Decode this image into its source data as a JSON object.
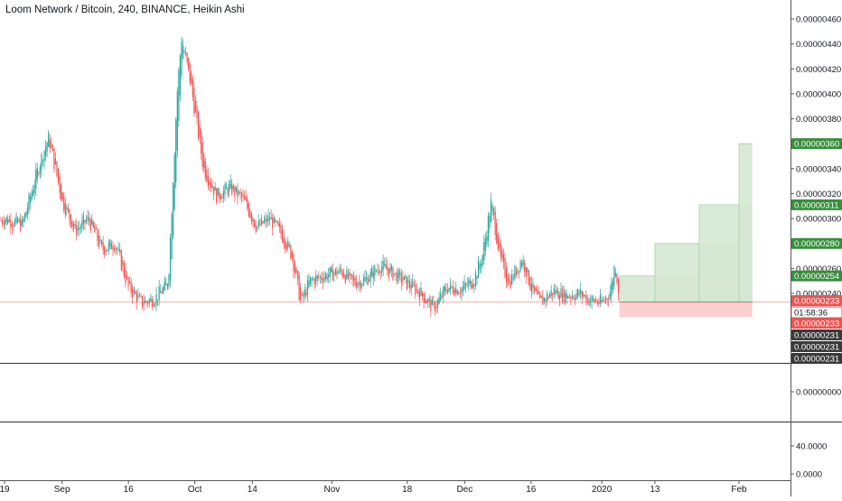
{
  "header": {
    "title": "Loom Network / Bitcoin, 240, BINANCE, Heikin Ashi"
  },
  "colors": {
    "up": "#26a69a",
    "down": "#ef5350",
    "target_zone": "#d5e8d4",
    "stop_zone": "#f8c8c8",
    "price_line": "#ef5350",
    "green_tag": "#388e3c",
    "red_tag": "#ef5350",
    "dark_tag": "#3a3a3a",
    "separator": "#333333"
  },
  "chart_data": {
    "type": "candlestick",
    "style": "Heikin Ashi",
    "symbol": "Loom Network / Bitcoin",
    "interval": "240",
    "exchange": "BINANCE",
    "ylim": [
      2.2e-06,
      4.7e-06
    ],
    "y_ticks": [
      "0.00000460",
      "0.00000440",
      "0.00000420",
      "0.00000400",
      "0.00000380",
      "0.00000340",
      "0.00000320",
      "0.00000300",
      "0.00000260",
      "0.00000240"
    ],
    "y_tick_values": [
      4.6e-06,
      4.4e-06,
      4.2e-06,
      4e-06,
      3.8e-06,
      3.4e-06,
      3.2e-06,
      3e-06,
      2.6e-06,
      2.4e-06
    ],
    "x_ticks": [
      "19",
      "Sep",
      "16",
      "Oct",
      "14",
      "Nov",
      "18",
      "Dec",
      "16",
      "2020",
      "13",
      "Feb"
    ],
    "x_tick_dates": [
      "2019-08-19",
      "2019-09-01",
      "2019-09-16",
      "2019-10-01",
      "2019-10-14",
      "2019-11-01",
      "2019-11-18",
      "2019-12-01",
      "2019-12-16",
      "2020-01-01",
      "2020-01-13",
      "2020-02-01"
    ],
    "price_path": [
      [
        "2019-08-14",
        2.9e-06
      ],
      [
        "2019-08-19",
        3e-06
      ],
      [
        "2019-08-23",
        2.95e-06
      ],
      [
        "2019-08-27",
        3.45e-06
      ],
      [
        "2019-08-29",
        3.65e-06
      ],
      [
        "2019-09-01",
        3.15e-06
      ],
      [
        "2019-09-04",
        2.9e-06
      ],
      [
        "2019-09-07",
        3e-06
      ],
      [
        "2019-09-10",
        2.75e-06
      ],
      [
        "2019-09-13",
        2.8e-06
      ],
      [
        "2019-09-16",
        2.45e-06
      ],
      [
        "2019-09-19",
        2.32e-06
      ],
      [
        "2019-09-22",
        2.36e-06
      ],
      [
        "2019-09-25",
        2.48e-06
      ],
      [
        "2019-09-27",
        4e-06
      ],
      [
        "2019-09-28",
        4.45e-06
      ],
      [
        "2019-09-30",
        4.1e-06
      ],
      [
        "2019-10-03",
        3.4e-06
      ],
      [
        "2019-10-06",
        3.18e-06
      ],
      [
        "2019-10-09",
        3.25e-06
      ],
      [
        "2019-10-12",
        3.15e-06
      ],
      [
        "2019-10-15",
        2.93e-06
      ],
      [
        "2019-10-18",
        3e-06
      ],
      [
        "2019-10-21",
        2.85e-06
      ],
      [
        "2019-10-23",
        2.7e-06
      ],
      [
        "2019-10-25",
        2.32e-06
      ],
      [
        "2019-10-27",
        2.5e-06
      ],
      [
        "2019-10-31",
        2.55e-06
      ],
      [
        "2019-11-03",
        2.58e-06
      ],
      [
        "2019-11-06",
        2.48e-06
      ],
      [
        "2019-11-09",
        2.52e-06
      ],
      [
        "2019-11-12",
        2.62e-06
      ],
      [
        "2019-11-14",
        2.58e-06
      ],
      [
        "2019-11-18",
        2.48e-06
      ],
      [
        "2019-11-21",
        2.4e-06
      ],
      [
        "2019-11-24",
        2.28e-06
      ],
      [
        "2019-11-27",
        2.45e-06
      ],
      [
        "2019-11-30",
        2.43e-06
      ],
      [
        "2019-12-03",
        2.5e-06
      ],
      [
        "2019-12-05",
        2.7e-06
      ],
      [
        "2019-12-07",
        3.13e-06
      ],
      [
        "2019-12-09",
        2.68e-06
      ],
      [
        "2019-12-11",
        2.48e-06
      ],
      [
        "2019-12-14",
        2.68e-06
      ],
      [
        "2019-12-16",
        2.45e-06
      ],
      [
        "2019-12-18",
        2.32e-06
      ],
      [
        "2019-12-21",
        2.42e-06
      ],
      [
        "2019-12-24",
        2.38e-06
      ],
      [
        "2019-12-27",
        2.4e-06
      ],
      [
        "2019-12-29",
        2.35e-06
      ],
      [
        "2020-01-01",
        2.32e-06
      ],
      [
        "2020-01-03",
        2.42e-06
      ],
      [
        "2020-01-04",
        2.65e-06
      ],
      [
        "2020-01-05",
        2.36e-06
      ]
    ],
    "current_price": 2.33e-06,
    "long_position": {
      "entry": 2.33e-06,
      "stop": 2.21e-06,
      "start_date": "2020-01-05",
      "end_date": "2020-02-04",
      "targets": [
        {
          "price": 2.54e-06,
          "from": "2020-01-05"
        },
        {
          "price": 2.8e-06,
          "from": "2020-01-13"
        },
        {
          "price": 3.11e-06,
          "from": "2020-01-23"
        },
        {
          "price": 3.6e-06,
          "from": "2020-02-01"
        }
      ]
    },
    "price_tags": [
      {
        "label": "0.00000360",
        "price": 3.6e-06,
        "style": "green"
      },
      {
        "label": "0.00000311",
        "price": 3.11e-06,
        "style": "green"
      },
      {
        "label": "0.00000280",
        "price": 2.8e-06,
        "style": "green"
      },
      {
        "label": "0.00000254",
        "price": 2.54e-06,
        "style": "green"
      },
      {
        "label": "0.00000233",
        "price": 2.33e-06,
        "style": "red"
      },
      {
        "label": "01:58:36",
        "price": 2.33e-06,
        "style": "countdown"
      },
      {
        "label": "0.00000233",
        "price": 2.33e-06,
        "style": "red2"
      },
      {
        "label": "0.00000231",
        "price": 2.31e-06,
        "style": "dark1"
      },
      {
        "label": "0.00000231",
        "price": 2.31e-06,
        "style": "dark2"
      },
      {
        "label": "0.00000231",
        "price": 2.31e-06,
        "style": "dark3"
      }
    ],
    "panes": [
      {
        "name": "pane-2",
        "ticks": [
          "0.00000000"
        ]
      },
      {
        "name": "pane-3",
        "ticks": [
          "40.0000",
          "0.0000"
        ]
      }
    ]
  }
}
